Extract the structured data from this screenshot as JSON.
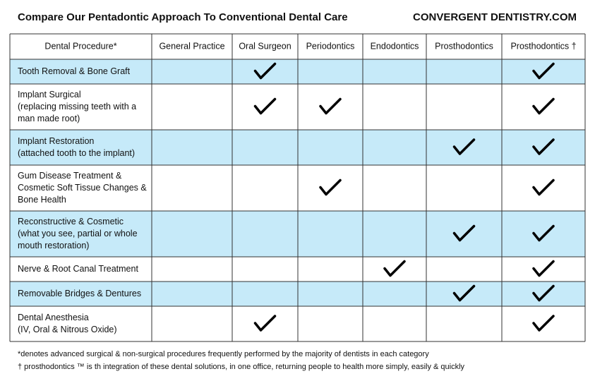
{
  "header": {
    "title": "Compare  Our Pentadontic Approach To Conventional Dental Care",
    "brand": "CONVERGENT DENTISTRY.COM"
  },
  "table": {
    "columns": [
      "Dental Procedure*",
      "General Practice",
      "Oral Surgeon",
      "Periodontics",
      "Endodontics",
      "Prosthodontics",
      "Prosthodontics †"
    ],
    "rows": [
      {
        "procedure": [
          "Tooth Removal & Bone Graft"
        ],
        "checks": [
          false,
          true,
          false,
          false,
          false,
          true
        ]
      },
      {
        "procedure": [
          "Implant Surgical",
          "(replacing missing teeth with a",
          "man made root)"
        ],
        "checks": [
          false,
          true,
          true,
          false,
          false,
          true
        ]
      },
      {
        "procedure": [
          "Implant Restoration",
          "(attached tooth to the implant)"
        ],
        "checks": [
          false,
          false,
          false,
          false,
          true,
          true
        ]
      },
      {
        "procedure": [
          "Gum Disease Treatment &",
          "Cosmetic Soft Tissue Changes &",
          "Bone Health"
        ],
        "checks": [
          false,
          false,
          true,
          false,
          false,
          true
        ]
      },
      {
        "procedure": [
          "Reconstructive & Cosmetic",
          "(what you see, partial or whole",
          "mouth restoration)"
        ],
        "checks": [
          false,
          false,
          false,
          false,
          true,
          true
        ]
      },
      {
        "procedure": [
          "Nerve & Root Canal Treatment"
        ],
        "checks": [
          false,
          false,
          false,
          true,
          false,
          true
        ]
      },
      {
        "procedure": [
          "Removable Bridges & Dentures"
        ],
        "checks": [
          false,
          false,
          false,
          false,
          true,
          true
        ]
      },
      {
        "procedure": [
          "Dental Anesthesia",
          "(IV, Oral & Nitrous Oxide)"
        ],
        "checks": [
          false,
          true,
          false,
          false,
          false,
          true
        ]
      }
    ]
  },
  "footnotes": [
    "*denotes advanced surgical & non-surgical procedures frequently performed by the majority of dentists in each category",
    "† prosthodontics ™ is th integration of these dental solutions, in one office, returning people to health more simply, easily & quickly"
  ]
}
